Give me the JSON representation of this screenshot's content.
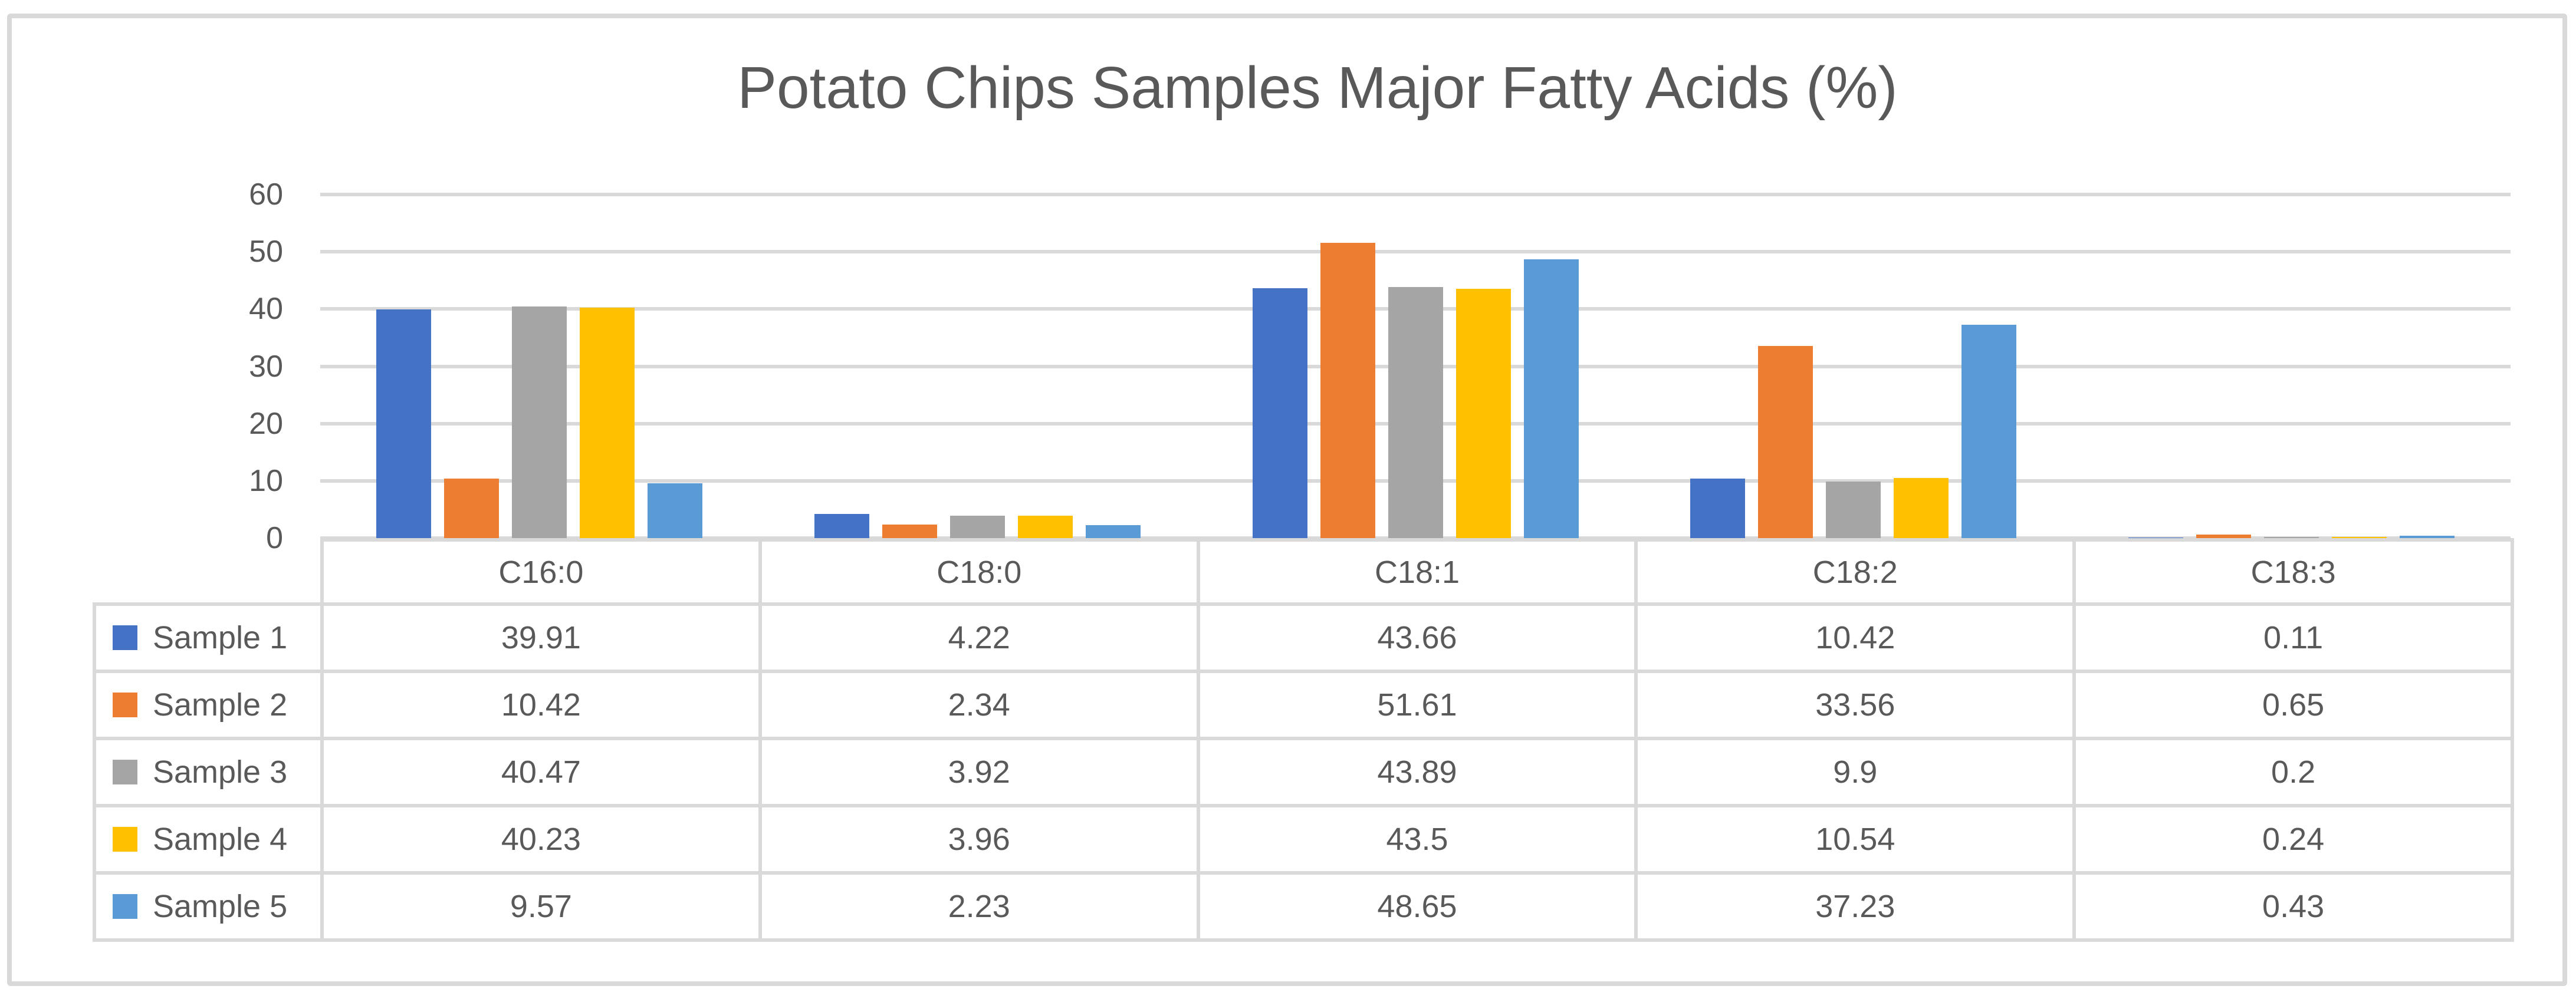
{
  "chart_data": {
    "type": "bar",
    "title": "Potato Chips Samples Major Fatty Acids (%)",
    "categories": [
      "C16:0",
      "C18:0",
      "C18:1",
      "C18:2",
      "C18:3"
    ],
    "series": [
      {
        "name": "Sample 1",
        "color": "#4472C4",
        "values": [
          39.91,
          4.22,
          43.66,
          10.42,
          0.11
        ]
      },
      {
        "name": "Sample 2",
        "color": "#ED7D31",
        "values": [
          10.42,
          2.34,
          51.61,
          33.56,
          0.65
        ]
      },
      {
        "name": "Sample 3",
        "color": "#A5A5A5",
        "values": [
          40.47,
          3.92,
          43.89,
          9.9,
          0.2
        ]
      },
      {
        "name": "Sample 4",
        "color": "#FFC000",
        "values": [
          40.23,
          3.96,
          43.5,
          10.54,
          0.24
        ]
      },
      {
        "name": "Sample 5",
        "color": "#5B9BD5",
        "values": [
          9.57,
          2.23,
          48.65,
          37.23,
          0.43
        ]
      }
    ],
    "ylim": [
      0,
      60
    ],
    "ytick_step": 10,
    "ytick_labels": [
      "0",
      "10",
      "20",
      "30",
      "40",
      "50",
      "60"
    ],
    "grid": true,
    "legend_position": "data-table-left",
    "data_table_shown": true,
    "xlabel": "",
    "ylabel": ""
  },
  "colors": {
    "text": "#595959",
    "gridline": "#D9D9D9",
    "frame_border": "#D9D9D9",
    "background": "#FFFFFF"
  }
}
